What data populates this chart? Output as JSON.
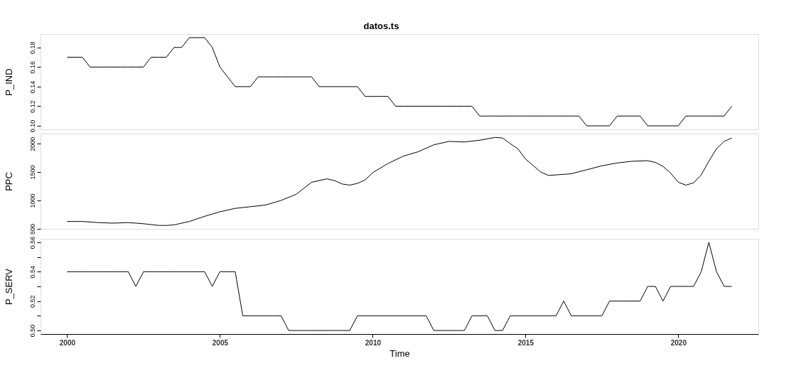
{
  "chart_data": [
    {
      "type": "line",
      "title": "datos.ts",
      "ylabel": "P_IND",
      "color": "#000000",
      "marker": "none",
      "line_style": "solid",
      "grid": false,
      "tick_labels": "y",
      "x": [
        2000,
        2000.25,
        2000.5,
        2000.75,
        2001,
        2001.25,
        2001.5,
        2001.75,
        2002,
        2002.25,
        2002.5,
        2002.75,
        2003,
        2003.25,
        2003.5,
        2003.75,
        2004,
        2004.25,
        2004.5,
        2004.75,
        2005,
        2005.25,
        2005.5,
        2005.75,
        2006,
        2006.25,
        2006.5,
        2006.75,
        2007,
        2007.25,
        2007.5,
        2007.75,
        2008,
        2008.25,
        2008.5,
        2008.75,
        2009,
        2009.25,
        2009.5,
        2009.75,
        2010,
        2010.25,
        2010.5,
        2010.75,
        2011,
        2011.25,
        2011.5,
        2011.75,
        2012,
        2012.25,
        2012.5,
        2012.75,
        2013,
        2013.25,
        2013.5,
        2013.75,
        2014,
        2014.25,
        2014.5,
        2014.75,
        2015,
        2015.25,
        2015.5,
        2015.75,
        2016,
        2016.25,
        2016.5,
        2016.75,
        2017,
        2017.25,
        2017.5,
        2017.75,
        2018,
        2018.25,
        2018.5,
        2018.75,
        2019,
        2019.25,
        2019.5,
        2019.75,
        2020,
        2020.25,
        2020.5,
        2020.75,
        2021,
        2021.25,
        2021.5,
        2021.75
      ],
      "values": [
        0.17,
        0.17,
        0.17,
        0.16,
        0.16,
        0.16,
        0.16,
        0.16,
        0.16,
        0.16,
        0.16,
        0.17,
        0.17,
        0.17,
        0.18,
        0.18,
        0.19,
        0.19,
        0.19,
        0.18,
        0.16,
        0.15,
        0.14,
        0.14,
        0.14,
        0.15,
        0.15,
        0.15,
        0.15,
        0.15,
        0.15,
        0.15,
        0.15,
        0.14,
        0.14,
        0.14,
        0.14,
        0.14,
        0.14,
        0.13,
        0.13,
        0.13,
        0.13,
        0.12,
        0.12,
        0.12,
        0.12,
        0.12,
        0.12,
        0.12,
        0.12,
        0.12,
        0.12,
        0.12,
        0.11,
        0.11,
        0.11,
        0.11,
        0.11,
        0.11,
        0.11,
        0.11,
        0.11,
        0.11,
        0.11,
        0.11,
        0.11,
        0.11,
        0.1,
        0.1,
        0.1,
        0.1,
        0.11,
        0.11,
        0.11,
        0.11,
        0.1,
        0.1,
        0.1,
        0.1,
        0.1,
        0.11,
        0.11,
        0.11,
        0.11,
        0.11,
        0.11,
        0.12
      ],
      "xlim": [
        1999.13,
        2022.62
      ],
      "xticks": [
        2000,
        2005,
        2010,
        2015,
        2020
      ],
      "ylim": [
        0.0964,
        0.1936
      ],
      "yticks": [
        {
          "value": 0.1,
          "label": "0.10"
        },
        0.12,
        0.14,
        0.16,
        0.18
      ]
    },
    {
      "type": "line",
      "ylabel": "PPC",
      "color": "#000000",
      "marker": "none",
      "line_style": "solid",
      "grid": false,
      "tick_labels": "y",
      "x": [
        2000,
        2000.5,
        2001,
        2001.5,
        2002,
        2002.5,
        2003,
        2003.25,
        2003.5,
        2004,
        2004.5,
        2005,
        2005.5,
        2006,
        2006.5,
        2007,
        2007.5,
        2008,
        2008.5,
        2008.75,
        2009,
        2009.25,
        2009.5,
        2009.75,
        2010,
        2010.5,
        2011,
        2011.5,
        2012,
        2012.5,
        2013,
        2013.5,
        2014,
        2014.25,
        2014.5,
        2014.75,
        2015,
        2015.5,
        2015.75,
        2016,
        2016.5,
        2017,
        2017.5,
        2018,
        2018.5,
        2019,
        2019.25,
        2019.5,
        2019.75,
        2020,
        2020.25,
        2020.5,
        2020.75,
        2021,
        2021.25,
        2021.5,
        2021.75
      ],
      "values": [
        630,
        630,
        610,
        600,
        610,
        590,
        560,
        560,
        570,
        630,
        720,
        800,
        860,
        890,
        920,
        1000,
        1110,
        1320,
        1380,
        1350,
        1290,
        1270,
        1300,
        1360,
        1490,
        1650,
        1780,
        1860,
        1980,
        2040,
        2030,
        2060,
        2110,
        2100,
        2000,
        1910,
        1730,
        1500,
        1440,
        1450,
        1470,
        1540,
        1610,
        1660,
        1690,
        1700,
        1670,
        1600,
        1480,
        1320,
        1270,
        1310,
        1450,
        1690,
        1910,
        2040,
        2100
      ],
      "xlim": [
        1999.13,
        2022.62
      ],
      "xticks": [
        2000,
        2005,
        2010,
        2015,
        2020
      ],
      "ylim": [
        500,
        2177
      ],
      "yticks": [
        500,
        1000,
        1500,
        2000
      ]
    },
    {
      "type": "line",
      "ylabel": "P_SERV",
      "xlabel": "Time",
      "color": "#000000",
      "marker": "none",
      "line_style": "solid",
      "grid": false,
      "x": [
        2000,
        2000.25,
        2000.5,
        2000.75,
        2001,
        2001.25,
        2001.5,
        2001.75,
        2002,
        2002.25,
        2002.5,
        2002.75,
        2003,
        2003.25,
        2003.5,
        2003.75,
        2004,
        2004.25,
        2004.5,
        2004.75,
        2005,
        2005.25,
        2005.5,
        2005.75,
        2006,
        2006.25,
        2006.5,
        2006.75,
        2007,
        2007.25,
        2007.5,
        2007.75,
        2008,
        2008.25,
        2008.5,
        2008.75,
        2009,
        2009.25,
        2009.5,
        2009.75,
        2010,
        2010.25,
        2010.5,
        2010.75,
        2011,
        2011.25,
        2011.5,
        2011.75,
        2012,
        2012.25,
        2012.5,
        2012.75,
        2013,
        2013.25,
        2013.5,
        2013.75,
        2014,
        2014.25,
        2014.5,
        2014.75,
        2015,
        2015.25,
        2015.5,
        2015.75,
        2016,
        2016.25,
        2016.5,
        2016.75,
        2017,
        2017.25,
        2017.5,
        2017.75,
        2018,
        2018.25,
        2018.5,
        2018.75,
        2019,
        2019.25,
        2019.5,
        2019.75,
        2020,
        2020.25,
        2020.5,
        2020.75,
        2021,
        2021.25,
        2021.5,
        2021.75
      ],
      "values": [
        0.54,
        0.54,
        0.54,
        0.54,
        0.54,
        0.54,
        0.54,
        0.54,
        0.54,
        0.53,
        0.54,
        0.54,
        0.54,
        0.54,
        0.54,
        0.54,
        0.54,
        0.54,
        0.54,
        0.53,
        0.54,
        0.54,
        0.54,
        0.51,
        0.51,
        0.51,
        0.51,
        0.51,
        0.51,
        0.5,
        0.5,
        0.5,
        0.5,
        0.5,
        0.5,
        0.5,
        0.5,
        0.5,
        0.51,
        0.51,
        0.51,
        0.51,
        0.51,
        0.51,
        0.51,
        0.51,
        0.51,
        0.51,
        0.5,
        0.5,
        0.5,
        0.5,
        0.5,
        0.51,
        0.51,
        0.51,
        0.5,
        0.5,
        0.51,
        0.51,
        0.51,
        0.51,
        0.51,
        0.51,
        0.51,
        0.52,
        0.51,
        0.51,
        0.51,
        0.51,
        0.51,
        0.52,
        0.52,
        0.52,
        0.52,
        0.52,
        0.53,
        0.53,
        0.52,
        0.53,
        0.53,
        0.53,
        0.53,
        0.54,
        0.56,
        0.54,
        0.53,
        0.53
      ],
      "xlim": [
        1999.13,
        2022.62
      ],
      "xticks": [
        2000,
        2005,
        2010,
        2015,
        2020
      ],
      "ylim": [
        0.4976,
        0.5624
      ],
      "yticks": [
        {
          "value": 0.5,
          "label": "0.50"
        },
        {
          "value": 0.51,
          "label": null
        },
        0.52,
        {
          "value": 0.53,
          "label": null
        },
        0.54,
        {
          "value": 0.55,
          "label": null
        },
        0.56
      ]
    }
  ]
}
